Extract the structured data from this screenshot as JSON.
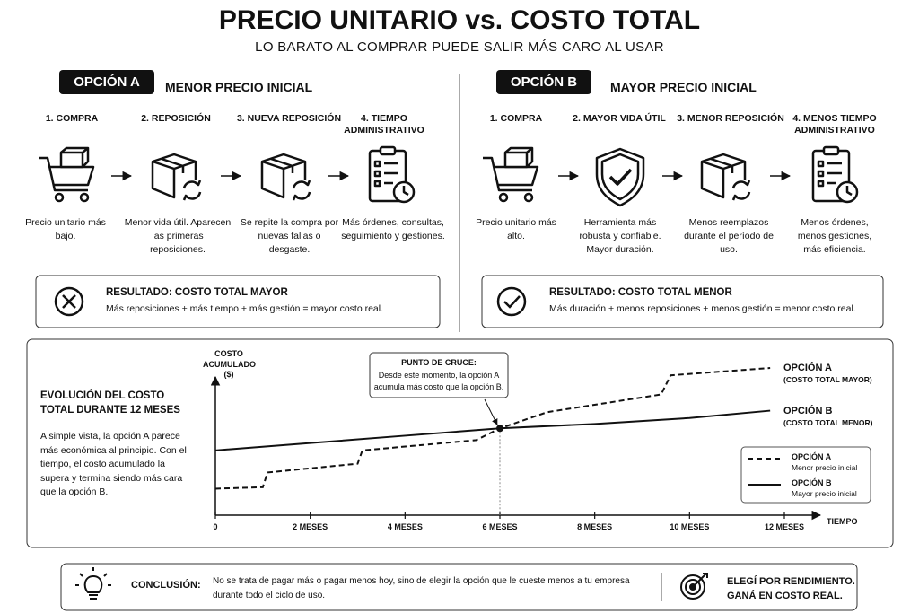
{
  "header": {
    "title": "PRECIO UNITARIO vs. COSTO TOTAL",
    "subtitle": "LO BARATO AL COMPRAR PUEDE SALIR MÁS CARO AL USAR"
  },
  "options": [
    {
      "badge": "OPCIÓN A",
      "heading": "MENOR PRECIO INICIAL",
      "steps": [
        {
          "title": "1. COMPRA",
          "text": "Precio unitario más bajo."
        },
        {
          "title": "2. REPOSICIÓN",
          "text": "Menor vida útil. Aparecen las primeras reposiciones."
        },
        {
          "title": "3. NUEVA REPOSICIÓN",
          "text": "Se repite la compra por nuevas fallas o desgaste."
        },
        {
          "title": "4. TIEMPO ADMINISTRATIVO",
          "text": "Más órdenes, consultas, seguimiento y gestiones."
        }
      ],
      "result": {
        "title": "RESULTADO: COSTO TOTAL MAYOR",
        "text": "Más reposiciones + más tiempo + más gestión = mayor costo real."
      }
    },
    {
      "badge": "OPCIÓN B",
      "heading": "MAYOR PRECIO INICIAL",
      "steps": [
        {
          "title": "1. COMPRA",
          "text": "Precio unitario más alto."
        },
        {
          "title": "2. MAYOR VIDA ÚTIL",
          "text": "Herramienta más robusta y confiable. Mayor duración."
        },
        {
          "title": "3. MENOR REPOSICIÓN",
          "text": "Menos reemplazos durante el período de uso."
        },
        {
          "title": "4. MENOS TIEMPO ADMINISTRATIVO",
          "text": "Menos órdenes, menos gestiones, más eficiencia."
        }
      ],
      "result": {
        "title": "RESULTADO: COSTO TOTAL MENOR",
        "text": "Más duración + menos reposiciones + menos gestión = menor costo real."
      }
    }
  ],
  "evolution": {
    "title": "EVOLUCIÓN DEL COSTO TOTAL DURANTE 12 MESES",
    "text": "A simple vista, la opción A parece más económica al principio. Con el tiempo, el costo acumulado la supera y termina siendo más cara que la opción B."
  },
  "chart_data": {
    "type": "line",
    "y_label": "COSTO ACUMULADO ($)",
    "x_label": "TIEMPO",
    "xlim": [
      0,
      12
    ],
    "ylim": [
      0,
      100
    ],
    "xticks": [
      0,
      {
        "value": 2,
        "label": "2 MESES"
      },
      {
        "value": 4,
        "label": "4 MESES"
      },
      {
        "value": 6,
        "label": "6 MESES"
      },
      {
        "value": 8,
        "label": "8 MESES"
      },
      {
        "value": 10,
        "label": "10 MESES"
      },
      {
        "value": 12,
        "label": "12 MESES"
      }
    ],
    "series": [
      {
        "name": "OPCIÓN A",
        "end_note": "(COSTO TOTAL MAYOR)",
        "description": "Menor precio inicial",
        "color": "#111111",
        "line_style": "dashed",
        "x": [
          0,
          1,
          1.1,
          3,
          3.1,
          5.5,
          6,
          7,
          9.4,
          9.6,
          11.7
        ],
        "values": [
          18,
          19,
          29,
          35,
          44,
          51,
          59,
          70,
          82,
          95,
          100
        ]
      },
      {
        "name": "OPCIÓN B",
        "end_note": "(COSTO TOTAL MENOR)",
        "description": "Mayor precio inicial",
        "color": "#111111",
        "line_style": "solid",
        "x": [
          0,
          2,
          4,
          6,
          8,
          10,
          11.7
        ],
        "values": [
          44,
          49,
          54,
          59,
          62,
          66,
          71
        ]
      }
    ],
    "annotation": {
      "title": "PUNTO DE CRUCE:",
      "text": "Desde este momento, la opción A acumula más costo que la opción B.",
      "x": 6,
      "y": 59
    }
  },
  "conclusion": {
    "label": "CONCLUSIÓN:",
    "text": "No se trata de pagar más o pagar menos hoy, sino de elegir la opción que le cueste menos a tu empresa durante todo el ciclo de uso.",
    "cta": "ELEGÍ POR RENDIMIENTO. GANÁ EN COSTO REAL."
  }
}
